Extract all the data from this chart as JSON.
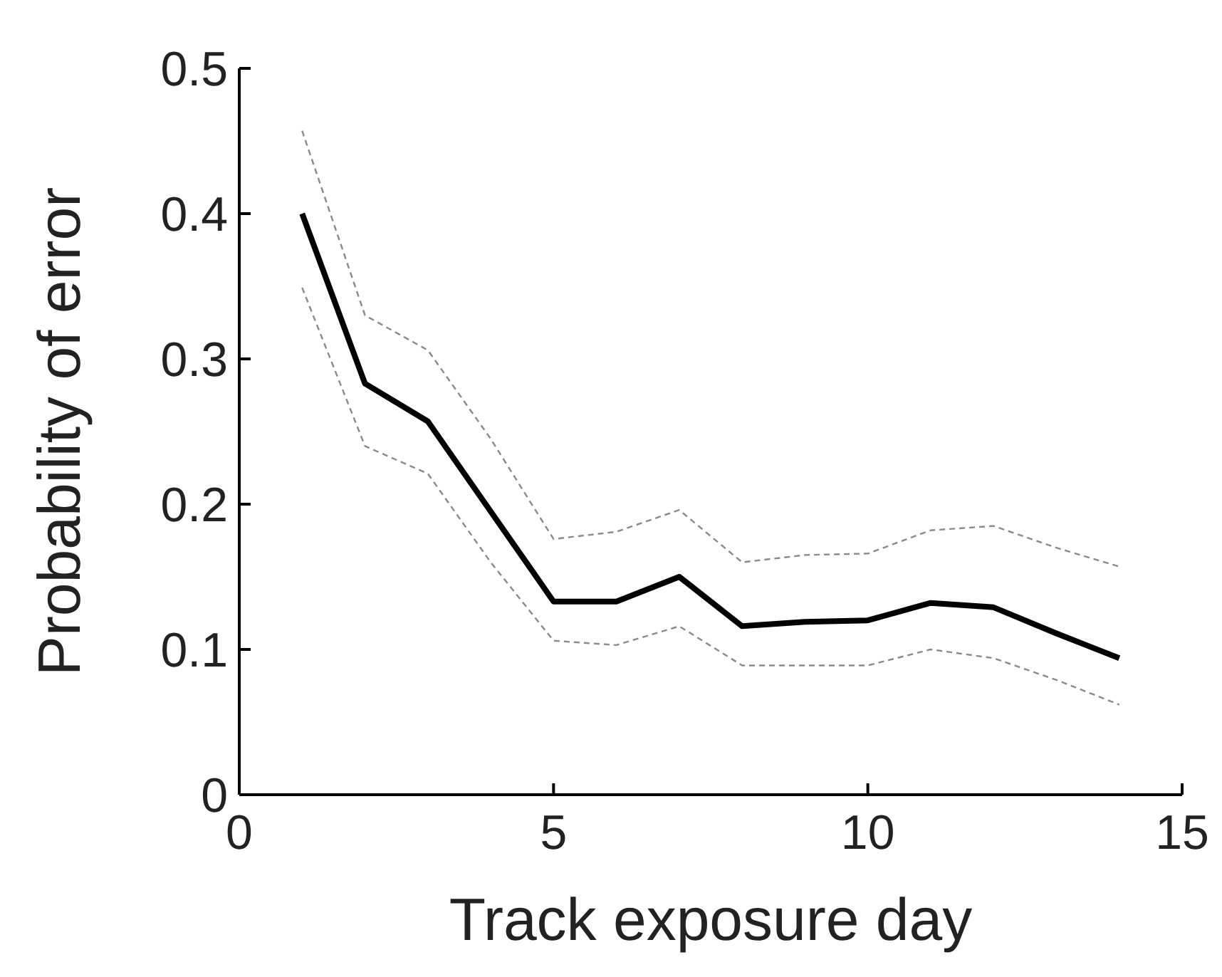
{
  "chart_data": {
    "type": "line",
    "xlabel": "Track exposure day",
    "ylabel": "Probability of error",
    "x": [
      1,
      2,
      3,
      4,
      5,
      6,
      7,
      8,
      9,
      10,
      11,
      12,
      13,
      14
    ],
    "series": [
      {
        "color": "#8a8a8a",
        "line_style": "dashed",
        "values": [
          0.457,
          0.33,
          0.306,
          0.245,
          0.176,
          0.181,
          0.196,
          0.16,
          0.165,
          0.166,
          0.182,
          0.185,
          0.17,
          0.157
        ]
      },
      {
        "color": "#8a8a8a",
        "line_style": "dashed",
        "values": [
          0.349,
          0.24,
          0.221,
          0.16,
          0.106,
          0.103,
          0.116,
          0.089,
          0.089,
          0.089,
          0.1,
          0.094,
          0.079,
          0.062
        ]
      },
      {
        "color": "#000000",
        "values": [
          0.4,
          0.283,
          0.257,
          0.195,
          0.133,
          0.133,
          0.15,
          0.116,
          0.119,
          0.12,
          0.132,
          0.129,
          0.111,
          0.094
        ]
      }
    ],
    "xlim": [
      0,
      15
    ],
    "ylim": [
      0,
      0.5
    ],
    "xticks": [
      0,
      5,
      10,
      15
    ],
    "yticks": [
      0,
      0.1,
      0.2,
      0.3,
      0.4,
      0.5
    ],
    "grid": false,
    "marker": "none",
    "line_style": "solid"
  }
}
